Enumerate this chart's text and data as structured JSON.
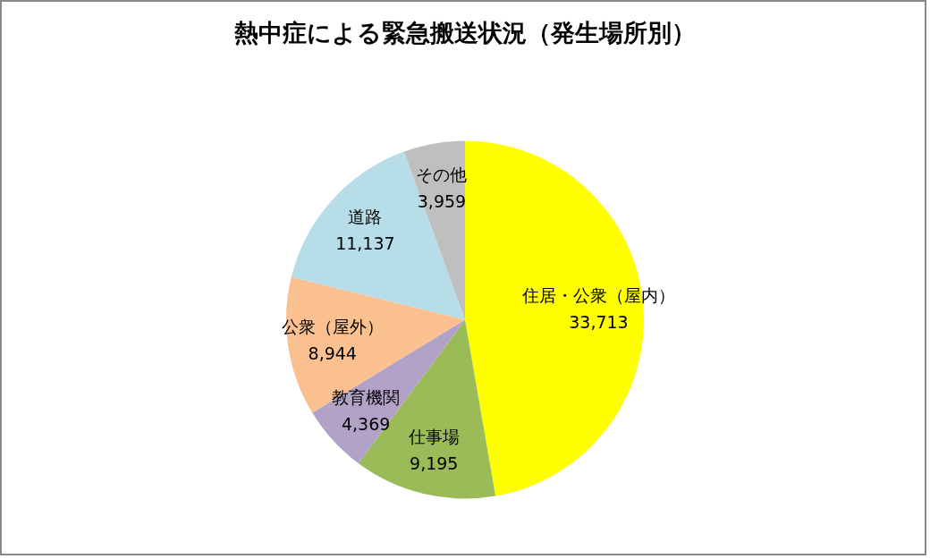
{
  "chart_data": {
    "type": "pie",
    "title": "熱中症による緊急搬送状況（発生場所別）",
    "categories": [
      "住居・公衆（屋内）",
      "仕事場",
      "教育機関",
      "公衆（屋外）",
      "道路",
      "その他"
    ],
    "values": [
      33713,
      9195,
      4369,
      8944,
      11137,
      3959
    ],
    "colors": [
      "#ffff00",
      "#9bbb59",
      "#b3a2c7",
      "#fac090",
      "#b7dee8",
      "#bfbfbf"
    ],
    "value_labels": [
      "33,713",
      "9,195",
      "4,369",
      "8,944",
      "11,137",
      "3,959"
    ]
  }
}
